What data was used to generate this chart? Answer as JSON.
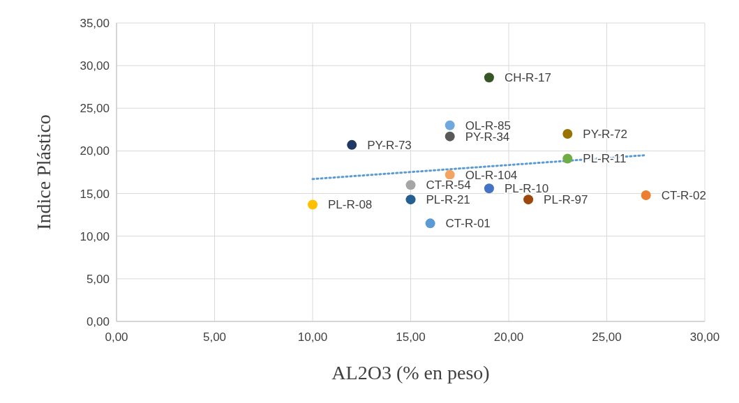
{
  "chart_data": {
    "type": "scatter",
    "xlabel": "AL2O3 (% en peso)",
    "ylabel": "Indice Plástico",
    "xlim": [
      0,
      30
    ],
    "ylim": [
      0,
      35
    ],
    "xticks": [
      {
        "value": 0,
        "label": "0,00"
      },
      {
        "value": 5,
        "label": "5,00"
      },
      {
        "value": 10,
        "label": "10,00"
      },
      {
        "value": 15,
        "label": "15,00"
      },
      {
        "value": 20,
        "label": "20,00"
      },
      {
        "value": 25,
        "label": "25,00"
      },
      {
        "value": 30,
        "label": "30,00"
      }
    ],
    "yticks": [
      {
        "value": 0,
        "label": "0,00"
      },
      {
        "value": 5,
        "label": "5,00"
      },
      {
        "value": 10,
        "label": "10,00"
      },
      {
        "value": 15,
        "label": "15,00"
      },
      {
        "value": 20,
        "label": "20,00"
      },
      {
        "value": 25,
        "label": "25,00"
      },
      {
        "value": 30,
        "label": "30,00"
      },
      {
        "value": 35,
        "label": "35,00"
      }
    ],
    "grid": true,
    "marker": "circle",
    "series": [
      {
        "name": "CH-R-17",
        "color": "#375623",
        "x": [
          19
        ],
        "values": [
          28.6
        ]
      },
      {
        "name": "OL-R-85",
        "color": "#6fa8dc",
        "x": [
          17
        ],
        "values": [
          23.0
        ]
      },
      {
        "name": "PY-R-34",
        "color": "#595959",
        "x": [
          17
        ],
        "values": [
          21.7
        ]
      },
      {
        "name": "PY-R-72",
        "color": "#997300",
        "x": [
          23
        ],
        "values": [
          22.0
        ]
      },
      {
        "name": "PY-R-73",
        "color": "#203864",
        "x": [
          12
        ],
        "values": [
          20.7
        ]
      },
      {
        "name": "PL-R-11",
        "color": "#70ad47",
        "x": [
          23
        ],
        "values": [
          19.1
        ]
      },
      {
        "name": "OL-R-104",
        "color": "#f4a460",
        "x": [
          17
        ],
        "values": [
          17.2
        ]
      },
      {
        "name": "CT-R-54",
        "color": "#a5a5a5",
        "x": [
          15
        ],
        "values": [
          16.0
        ]
      },
      {
        "name": "PL-R-10",
        "color": "#4472c4",
        "x": [
          19
        ],
        "values": [
          15.6
        ]
      },
      {
        "name": "CT-R-02",
        "color": "#ed7d31",
        "x": [
          27
        ],
        "values": [
          14.8
        ]
      },
      {
        "name": "PL-R-21",
        "color": "#255e91",
        "x": [
          15
        ],
        "values": [
          14.3
        ]
      },
      {
        "name": "PL-R-97",
        "color": "#9e480e",
        "x": [
          21
        ],
        "values": [
          14.3
        ]
      },
      {
        "name": "PL-R-08",
        "color": "#ffc000",
        "x": [
          10
        ],
        "values": [
          13.7
        ]
      },
      {
        "name": "CT-R-01",
        "color": "#5b9bd5",
        "x": [
          16
        ],
        "values": [
          11.5
        ]
      },
      {
        "type": "line",
        "color": "#5b9bd5",
        "line_style": "dotted",
        "marker": "none",
        "x": [
          10,
          27
        ],
        "values": [
          16.7,
          19.5
        ]
      }
    ]
  }
}
